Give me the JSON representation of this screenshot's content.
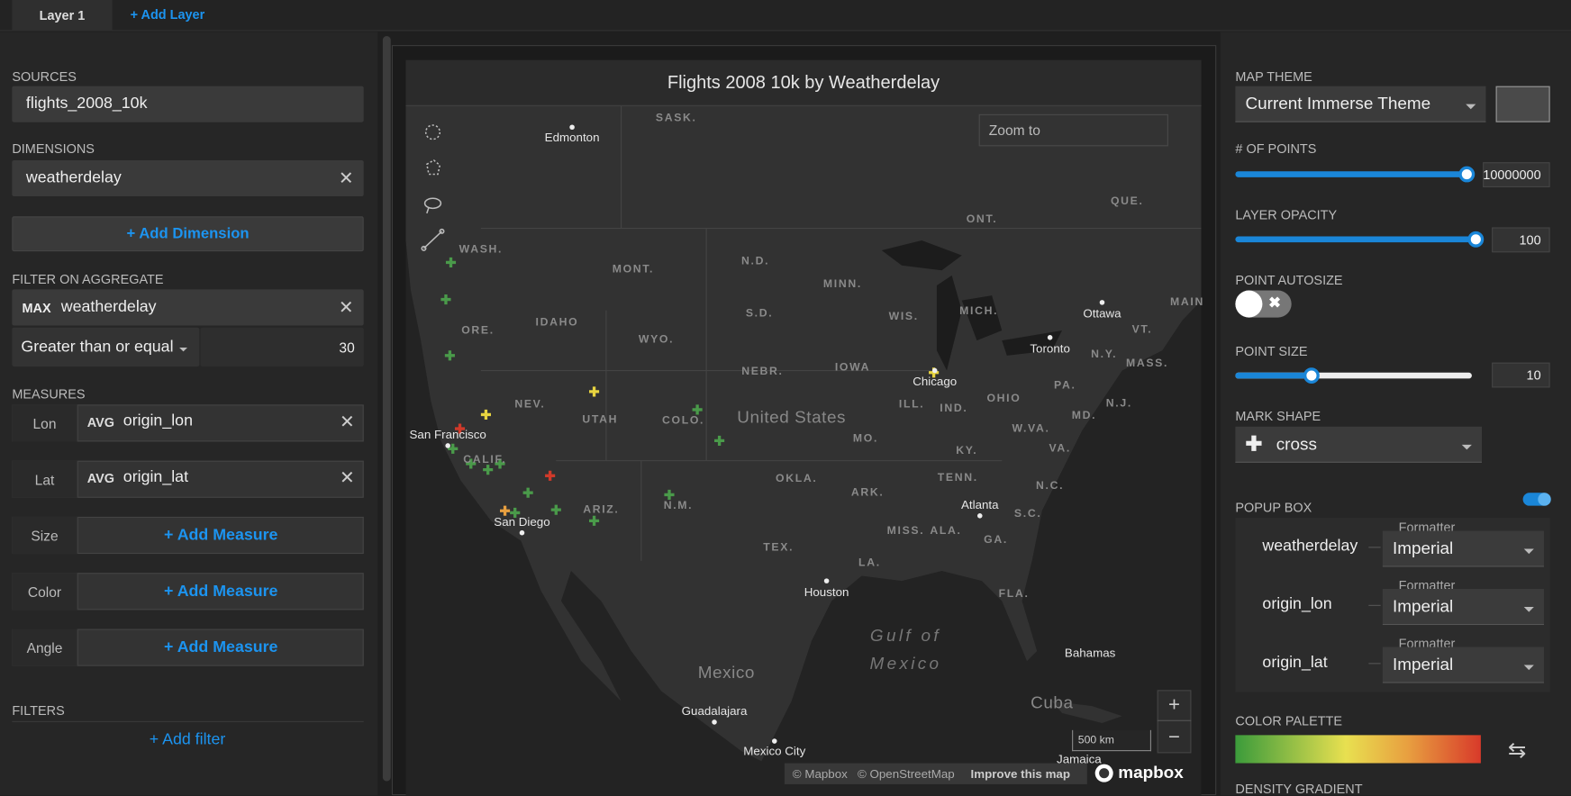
{
  "tabs": [
    "Layer 1",
    "+ Add Layer"
  ],
  "left": {
    "sources": {
      "label": "SOURCES",
      "value": "flights_2008_10k"
    },
    "dimensions": {
      "label": "DIMENSIONS",
      "value": "weatherdelay",
      "add": "+ Add Dimension"
    },
    "filter_on_aggregate": {
      "label": "FILTER ON AGGREGATE",
      "agg": "MAX",
      "field": "weatherdelay",
      "operator": "Greater than or equal",
      "value": 30
    },
    "measures": {
      "label": "MEASURES",
      "rows": [
        {
          "name": "Lon",
          "agg": "AVG",
          "field": "origin_lon"
        },
        {
          "name": "Lat",
          "agg": "AVG",
          "field": "origin_lat"
        },
        {
          "name": "Size",
          "action": "+ Add Measure"
        },
        {
          "name": "Color",
          "action": "+ Add Measure"
        },
        {
          "name": "Angle",
          "action": "+ Add Measure"
        }
      ]
    },
    "filters": {
      "label": "FILTERS",
      "add": "+ Add filter"
    }
  },
  "map": {
    "title": "Flights 2008 10k by Weatherdelay",
    "zoom_placeholder": "Zoom to",
    "labels": [
      "Edmonton",
      "SASK.",
      "WASH.",
      "MONT.",
      "N.D.",
      "MINN.",
      "ONT.",
      "QUE.",
      "Ottawa",
      "Toronto",
      "MAIN",
      "VT.",
      "N.Y.",
      "MASS.",
      "ORE.",
      "IDAHO",
      "WYO.",
      "S.D.",
      "WIS.",
      "MICH.",
      "NEBR.",
      "IOWA",
      "Chicago",
      "PA.",
      "NEV.",
      "UTAH",
      "COLO.",
      "United States",
      "ILL.",
      "IND.",
      "OHIO",
      "MD.",
      "N.J.",
      "San Francisco",
      "CALIF.",
      "MO.",
      "W.VA.",
      "KY.",
      "VA.",
      "TENN.",
      "N.C.",
      "OKLA.",
      "ARK.",
      "Atlanta",
      "S.C.",
      "ARIZ.",
      "N.M.",
      "San Diego",
      "MISS.",
      "ALA.",
      "GA.",
      "TEX.",
      "LA.",
      "Houston",
      "FLA.",
      "Gulf of",
      "Mexico",
      "Bahamas",
      "Mexico",
      "Cuba",
      "Guadalajara",
      "Mexico City",
      "Jamaica"
    ],
    "scale": "500 km",
    "attribution": [
      "© Mapbox",
      "© OpenStreetMap",
      "Improve this map"
    ],
    "logo": "mapbox",
    "zoom_in": "+",
    "zoom_out": "−"
  },
  "right": {
    "map_theme": {
      "label": "MAP THEME",
      "value": "Current Immerse Theme"
    },
    "points": {
      "label": "# OF POINTS",
      "value": 10000000
    },
    "layer_opacity": {
      "label": "LAYER OPACITY",
      "value": 100
    },
    "point_autosize": {
      "label": "POINT AUTOSIZE"
    },
    "point_size": {
      "label": "POINT SIZE",
      "value": 10
    },
    "mark_shape": {
      "label": "MARK SHAPE",
      "value": "cross"
    },
    "popup_box": {
      "label": "POPUP BOX",
      "rows": [
        {
          "field": "weatherdelay",
          "formatter_label": "Formatter",
          "formatter": "Imperial"
        },
        {
          "field": "origin_lon",
          "formatter_label": "Formatter",
          "formatter": "Imperial"
        },
        {
          "field": "origin_lat",
          "formatter_label": "Formatter",
          "formatter": "Imperial"
        }
      ]
    },
    "color_palette": {
      "label": "COLOR PALETTE"
    },
    "density_gradient": {
      "label": "DENSITY GRADIENT"
    }
  }
}
